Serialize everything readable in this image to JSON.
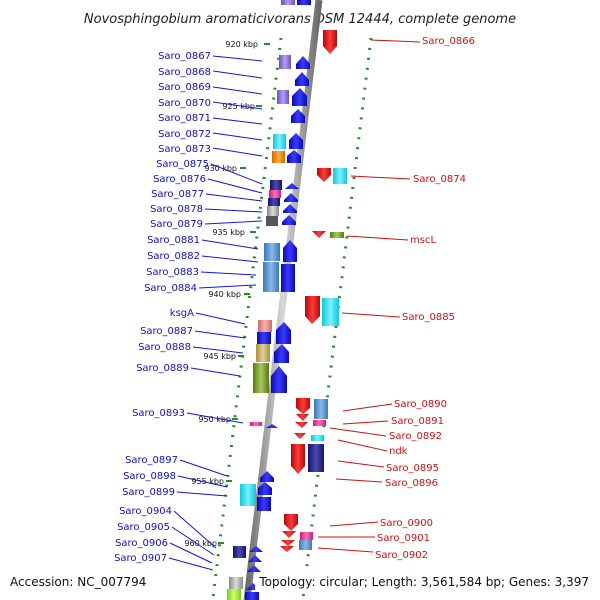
{
  "title": "Novosphingobium aromaticivorans DSM 12444, complete genome",
  "footer": {
    "accession": "Accession: NC_007794",
    "topology": "Topology: circular; Length: 3,561,584 bp; Genes: 3,397"
  },
  "ticks": [
    "920 kbp",
    "925 kbp",
    "930 kbp",
    "935 kbp",
    "940 kbp",
    "945 kbp",
    "950 kbp",
    "955 kbp",
    "960 kbp"
  ],
  "left_labels": [
    "Saro_0867",
    "Saro_0868",
    "Saro_0869",
    "Saro_0870",
    "Saro_0871",
    "Saro_0872",
    "Saro_0873",
    "Saro_0875",
    "Saro_0876",
    "Saro_0877",
    "Saro_0878",
    "Saro_0879",
    "Saro_0881",
    "Saro_0882",
    "Saro_0883",
    "Saro_0884",
    "ksgA",
    "Saro_0887",
    "Saro_0888",
    "Saro_0889",
    "Saro_0893",
    "Saro_0897",
    "Saro_0898",
    "Saro_0899",
    "Saro_0904",
    "Saro_0905",
    "Saro_0906",
    "Saro_0907"
  ],
  "right_labels": [
    "Saro_0866",
    "Saro_0874",
    "mscL",
    "Saro_0885",
    "Saro_0890",
    "Saro_0891",
    "Saro_0892",
    "ndk",
    "Saro_0895",
    "Saro_0896",
    "Saro_0900",
    "Saro_0901",
    "Saro_0902"
  ],
  "colors": {
    "forward_gene": "#1414e0",
    "reverse_gene": "#e01010",
    "backbone": "#9a9a9a",
    "tick_dots": "#2a8a2a",
    "left_label": "#1010c8",
    "right_label": "#d01010"
  }
}
